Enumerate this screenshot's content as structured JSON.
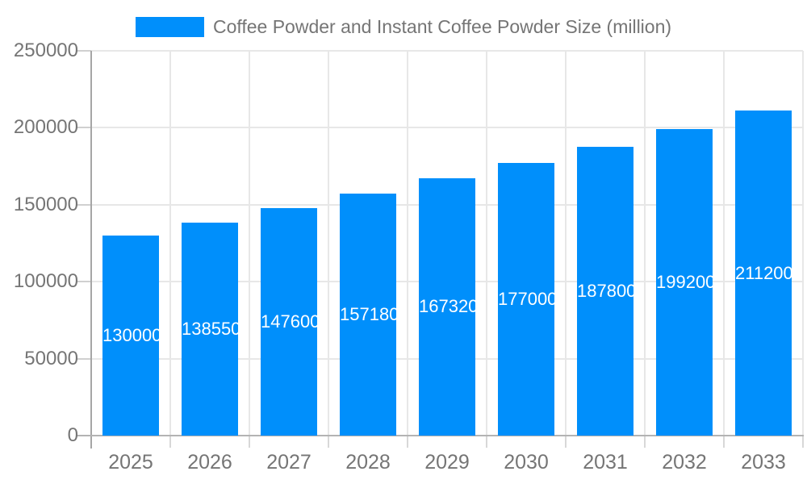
{
  "legend": {
    "title": "Coffee Powder and Instant Coffee Powder Size (million)"
  },
  "chart_data": {
    "type": "bar",
    "title": "Coffee Powder and Instant Coffee Powder Size (million)",
    "categories": [
      "2025",
      "2026",
      "2027",
      "2028",
      "2029",
      "2030",
      "2031",
      "2032",
      "2033"
    ],
    "values": [
      130000,
      138550,
      147600,
      157180,
      167320,
      177000,
      187800,
      199200,
      211200
    ],
    "bar_value_labels": [
      "130000",
      "138550",
      "147600",
      "157180",
      "167320",
      "177000",
      "187800",
      "199200",
      "211200"
    ],
    "xlabel": "",
    "ylabel": "",
    "ylim": [
      0,
      250000
    ],
    "ytick_step": 50000,
    "ytick_labels": [
      "0",
      "50000",
      "100000",
      "150000",
      "200000",
      "250000"
    ],
    "grid": true,
    "legend_position": "top",
    "colors": {
      "bar": "#008FFB",
      "bar_label_text": "#ffffff",
      "axis_label_text": "#757575",
      "gridline": "#e7e7e7",
      "axis_line": "#a6a6a6"
    }
  }
}
